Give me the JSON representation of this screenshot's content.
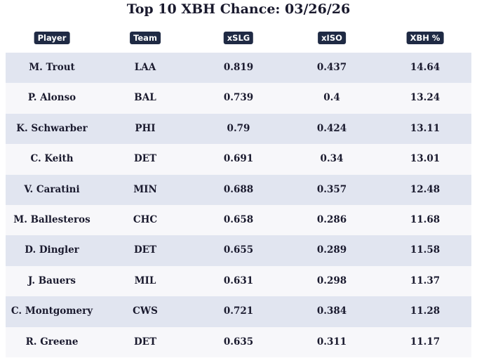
{
  "title": "Top 10 XBH Chance: 03/26/26",
  "table": {
    "header": [
      "Player",
      "Team",
      "xSLG",
      "xISO",
      "XBH %"
    ],
    "rows": [
      [
        "M. Trout",
        "LAA",
        "0.819",
        "0.437",
        "14.64"
      ],
      [
        "P. Alonso",
        "BAL",
        "0.739",
        "0.4",
        "13.24"
      ],
      [
        "K. Schwarber",
        "PHI",
        "0.79",
        "0.424",
        "13.11"
      ],
      [
        "C. Keith",
        "DET",
        "0.691",
        "0.34",
        "13.01"
      ],
      [
        "V. Caratini",
        "MIN",
        "0.688",
        "0.357",
        "12.48"
      ],
      [
        "M. Ballesteros",
        "CHC",
        "0.658",
        "0.286",
        "11.68"
      ],
      [
        "D. Dingler",
        "DET",
        "0.655",
        "0.289",
        "11.58"
      ],
      [
        "J. Bauers",
        "MIL",
        "0.631",
        "0.298",
        "11.37"
      ],
      [
        "C. Montgomery",
        "CWS",
        "0.721",
        "0.384",
        "11.28"
      ],
      [
        "R. Greene",
        "DET",
        "0.635",
        "0.311",
        "11.17"
      ]
    ]
  }
}
